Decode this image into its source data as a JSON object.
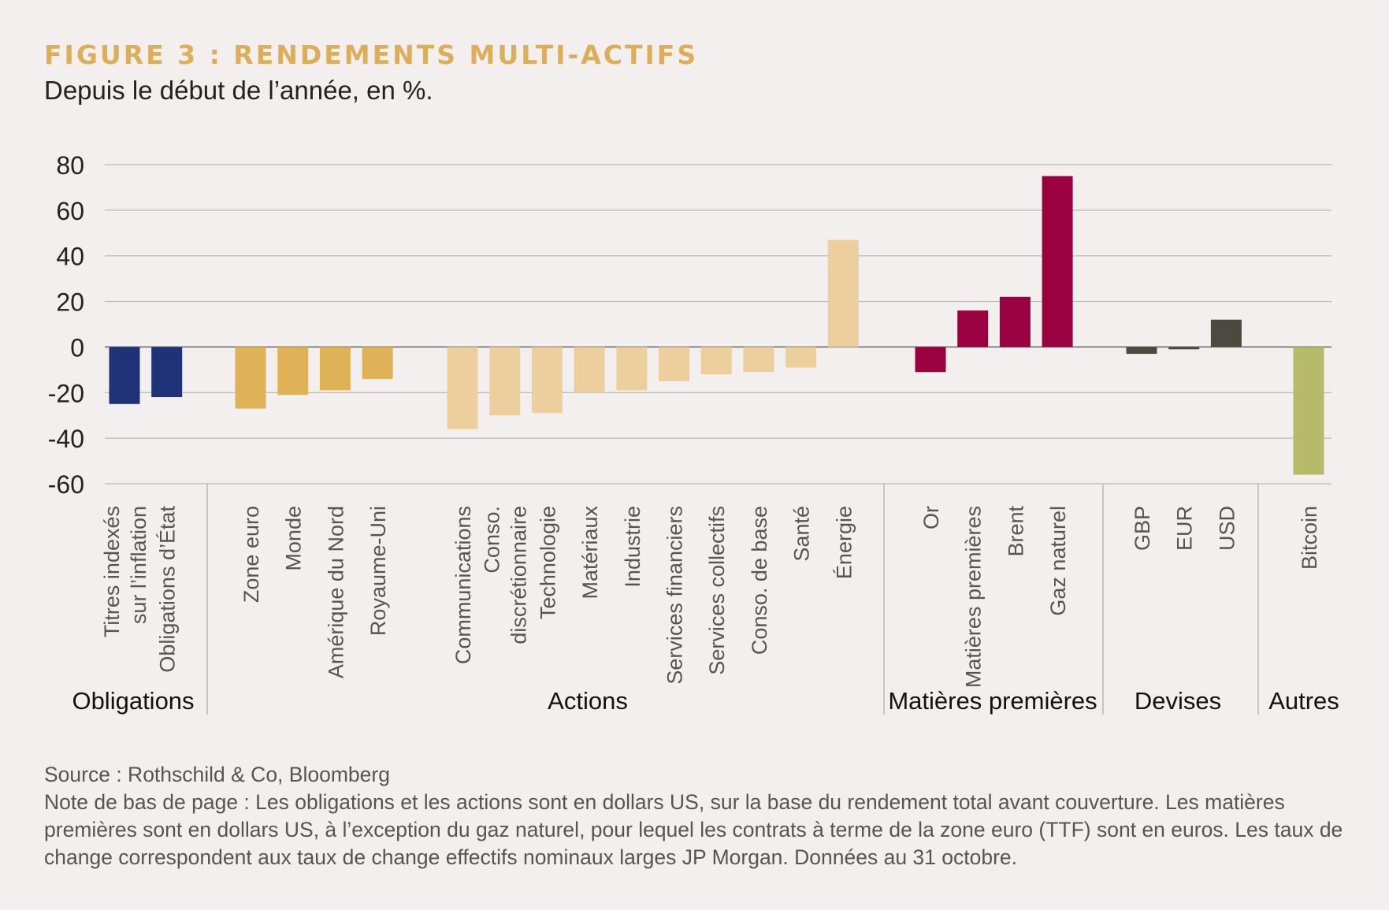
{
  "title": "FIGURE 3 : RENDEMENTS MULTI-ACTIFS",
  "subtitle": "Depuis le début de l’année, en %.",
  "source": "Source : Rothschild & Co, Bloomberg",
  "note": "Note de bas de page : Les obligations et les actions sont en dollars US, sur la base du rendement total avant couverture. Les matières premières sont en dollars US, à l’exception du gaz naturel, pour lequel les contrats à terme de la zone euro (TTF) sont en euros. Les taux de change correspondent aux taux de change effectifs nominaux larges JP Morgan. Données au 31 octobre.",
  "chart_data": {
    "type": "bar",
    "ylim": [
      -60,
      80
    ],
    "yticks": [
      80,
      60,
      40,
      20,
      0,
      -20,
      -40,
      -60
    ],
    "grid": true,
    "groups": [
      {
        "name": "Obligations",
        "color": "#1f3277",
        "items": [
          {
            "label": [
              "Titres indexés",
              "sur l’inflation"
            ],
            "value": -25
          },
          {
            "label": [
              "Obligations d’État"
            ],
            "value": -22
          }
        ]
      },
      {
        "name": "Actions",
        "color": "#dfb257",
        "items": [
          {
            "label": [
              "Zone euro"
            ],
            "value": -27
          },
          {
            "label": [
              "Monde"
            ],
            "value": -21
          },
          {
            "label": [
              "Amérique du Nord"
            ],
            "value": -19
          },
          {
            "label": [
              "Royaume-Uni"
            ],
            "value": -14
          }
        ]
      },
      {
        "name": "",
        "color": "#eccf9c",
        "items": [
          {
            "label": [
              "Communications"
            ],
            "value": -36
          },
          {
            "label": [
              "Conso.",
              "discrétionnaire"
            ],
            "value": -30
          },
          {
            "label": [
              "Technologie"
            ],
            "value": -29
          },
          {
            "label": [
              "Matériaux"
            ],
            "value": -20
          },
          {
            "label": [
              "Industrie"
            ],
            "value": -19
          },
          {
            "label": [
              "Services financiers"
            ],
            "value": -15
          },
          {
            "label": [
              "Services collectifs"
            ],
            "value": -12
          },
          {
            "label": [
              "Conso. de base"
            ],
            "value": -11
          },
          {
            "label": [
              "Santé"
            ],
            "value": -9
          },
          {
            "label": [
              "Énergie"
            ],
            "value": 47
          }
        ]
      },
      {
        "name": "Matières premières",
        "color": "#9b0040",
        "items": [
          {
            "label": [
              "Or"
            ],
            "value": -11
          },
          {
            "label": [
              "Matières premières"
            ],
            "value": 16
          },
          {
            "label": [
              "Brent"
            ],
            "value": 22
          },
          {
            "label": [
              "Gaz naturel"
            ],
            "value": 75
          }
        ]
      },
      {
        "name": "Devises",
        "color": "#4d4840",
        "items": [
          {
            "label": [
              "GBP"
            ],
            "value": -3
          },
          {
            "label": [
              "EUR"
            ],
            "value": -1
          },
          {
            "label": [
              "USD"
            ],
            "value": 12
          }
        ]
      },
      {
        "name": "Autres",
        "color": "#b5bb67",
        "items": [
          {
            "label": [
              "Bitcoin"
            ],
            "value": -56
          }
        ]
      }
    ]
  }
}
